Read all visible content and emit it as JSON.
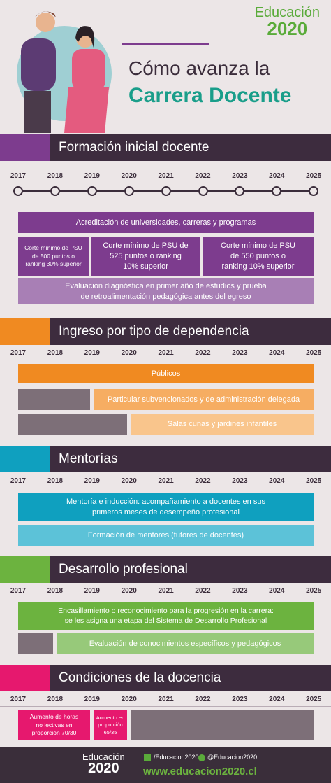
{
  "header": {
    "logo": {
      "name": "Educación",
      "number": "2020"
    },
    "title_line1": "Cómo avanza la",
    "title_line2": "Carrera Docente"
  },
  "sections": [
    {
      "title": "Formación inicial docente",
      "years": [
        "2017",
        "2018",
        "2019",
        "2020",
        "2021",
        "2022",
        "2023",
        "2024",
        "2025"
      ],
      "bars": [
        {
          "lines": [
            "Acreditación de universidades, carreras y programas"
          ]
        },
        {
          "lines": [
            "Corte mínimo de PSU",
            "de 500 puntos o",
            "ranking 30% superior"
          ]
        },
        {
          "lines": [
            "Corte mínimo de PSU de",
            "525 puntos o ranking",
            "10% superior"
          ]
        },
        {
          "lines": [
            "Corte mínimo de PSU",
            "de 550 puntos o",
            "ranking 10% superior"
          ]
        },
        {
          "lines": [
            "Evaluación diagnóstica en primer año de estudios y prueba",
            "de retroalimentación pedagógica antes del egreso"
          ]
        }
      ]
    },
    {
      "title": "Ingreso por tipo de dependencia",
      "years": [
        "2017",
        "2018",
        "2019",
        "2020",
        "2021",
        "2022",
        "2023",
        "2024",
        "2025"
      ],
      "bars": [
        {
          "lines": [
            "Públicos"
          ]
        },
        {
          "lines": [
            "Particular subvencionados y de administración delegada"
          ]
        },
        {
          "lines": [
            "Salas cunas y jardines infantiles"
          ]
        }
      ]
    },
    {
      "title": "Mentorías",
      "years": [
        "2017",
        "2018",
        "2019",
        "2020",
        "2021",
        "2022",
        "2023",
        "2024",
        "2025"
      ],
      "bars": [
        {
          "lines": [
            "Mentoría e inducción: acompañamiento a docentes en sus",
            "primeros meses de desempeño profesional"
          ]
        },
        {
          "lines": [
            "Formación de mentores (tutores de docentes)"
          ]
        }
      ]
    },
    {
      "title": "Desarrollo profesional",
      "years": [
        "2017",
        "2018",
        "2019",
        "2020",
        "2021",
        "2022",
        "2023",
        "2024",
        "2025"
      ],
      "bars": [
        {
          "lines": [
            "Encasillamiento o reconocimiento para la progresión en la carrera:",
            "se les asigna una etapa del Sistema de Desarrollo Profesional"
          ]
        },
        {
          "lines": [
            "Evaluación de conocimientos específicos y pedagógicos"
          ]
        }
      ]
    },
    {
      "title": "Condiciones de la docencia",
      "years": [
        "2017",
        "2018",
        "2019",
        "2020",
        "2021",
        "2022",
        "2023",
        "2024",
        "2025"
      ],
      "bars": [
        {
          "lines": [
            "Aumento de horas",
            "no lectivas en",
            "proporción 70/30"
          ]
        },
        {
          "lines": [
            "Aumento en",
            "proporción",
            "65/35"
          ]
        }
      ]
    }
  ],
  "footer": {
    "logo": {
      "name": "Educación",
      "number": "2020"
    },
    "facebook": "/Educacion2020",
    "twitter": "@Educacion2020",
    "url": "www.educacion2020.cl"
  }
}
